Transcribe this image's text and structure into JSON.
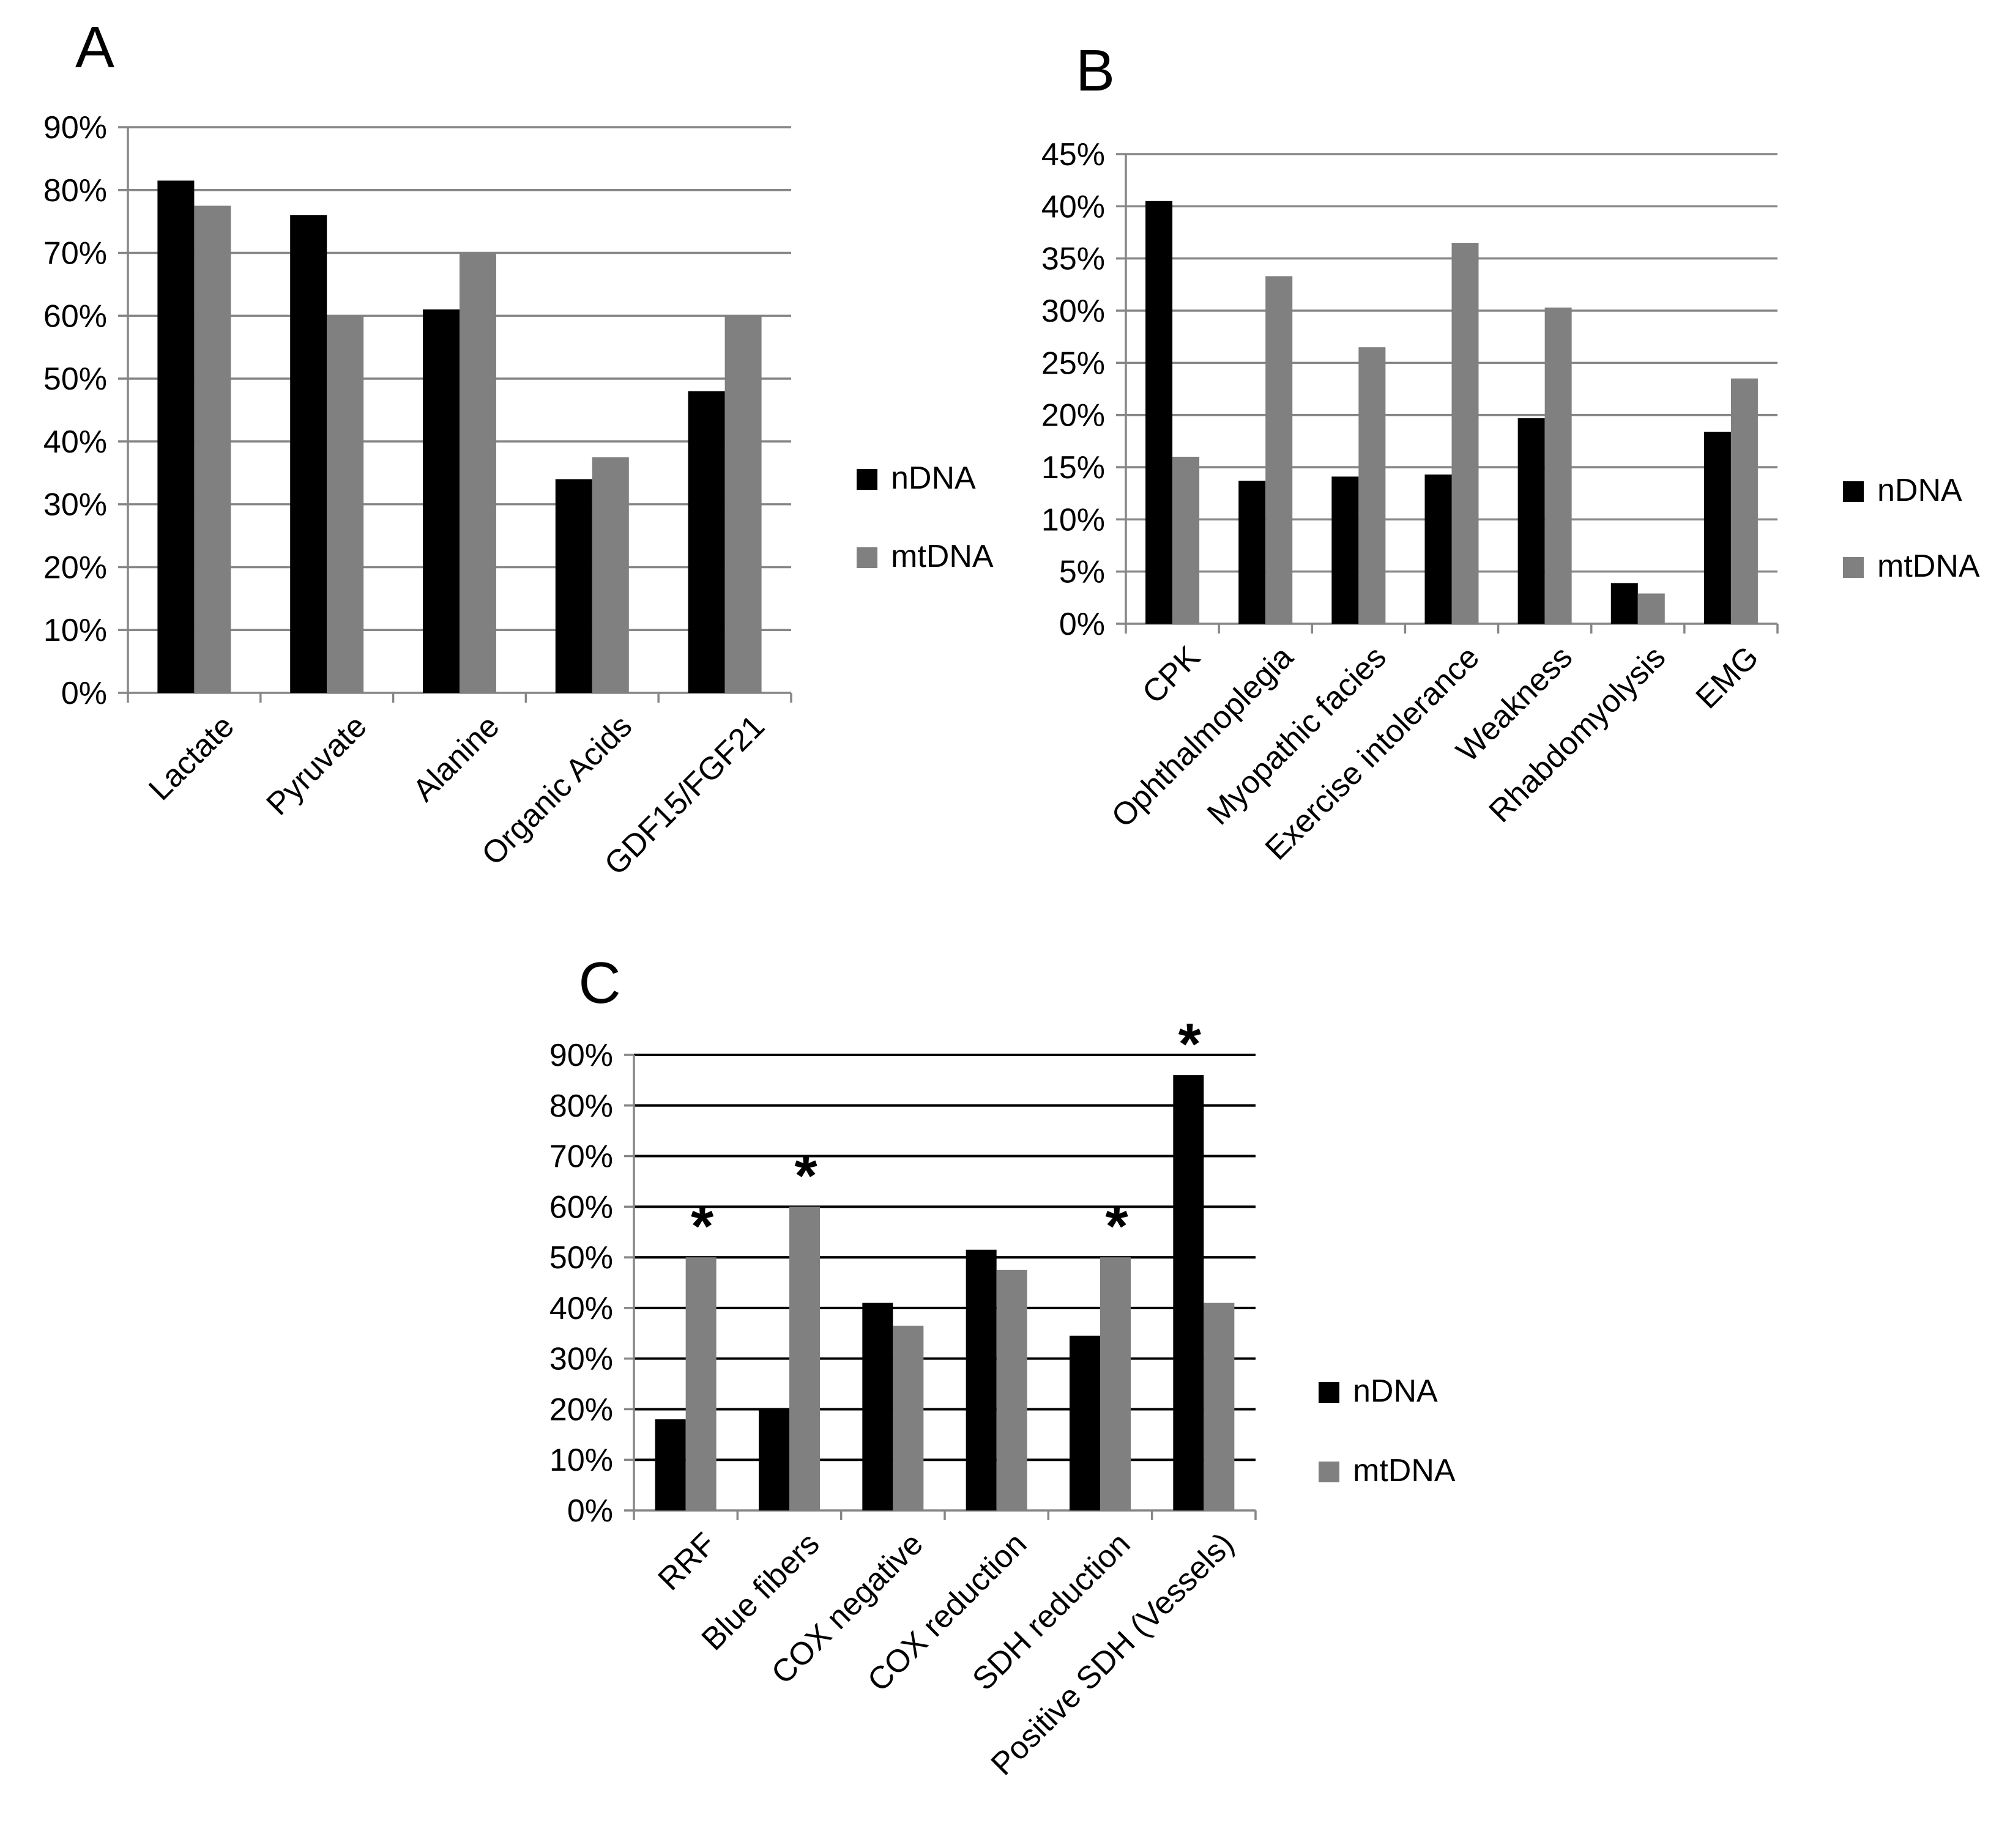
{
  "colors": {
    "nDNA": "#000000",
    "mtDNA": "#808080",
    "grid": "#868686",
    "axis": "#868686"
  },
  "legend": {
    "series": [
      "nDNA",
      "mtDNA"
    ]
  },
  "chart_data": [
    {
      "panel": "A",
      "type": "bar",
      "categories": [
        "Lactate",
        "Pyruvate",
        "Alanine",
        "Organic Acids",
        "GDF15/FGF21"
      ],
      "series": [
        {
          "name": "nDNA",
          "values": [
            81.5,
            76,
            61,
            34,
            48
          ]
        },
        {
          "name": "mtDNA",
          "values": [
            77.5,
            60,
            70,
            37.5,
            60
          ]
        }
      ],
      "ylim": [
        0,
        90
      ],
      "yticks": [
        "0%",
        "10%",
        "20%",
        "30%",
        "40%",
        "50%",
        "60%",
        "70%",
        "80%",
        "90%"
      ],
      "legend_position": "right",
      "title": "",
      "xlabel": "",
      "ylabel": ""
    },
    {
      "panel": "B",
      "type": "bar",
      "categories": [
        "CPK",
        "Ophthalmoplegia",
        "Myopathic facies",
        "Exercise intolerance",
        "Weakness",
        "Rhabdomyolysis",
        "EMG"
      ],
      "series": [
        {
          "name": "nDNA",
          "values": [
            40.5,
            13.7,
            14.1,
            14.3,
            19.7,
            3.9,
            18.4
          ]
        },
        {
          "name": "mtDNA",
          "values": [
            16,
            33.3,
            26.5,
            36.5,
            30.3,
            2.9,
            23.5
          ]
        }
      ],
      "ylim": [
        0,
        45
      ],
      "yticks": [
        "0%",
        "5%",
        "10%",
        "15%",
        "20%",
        "25%",
        "30%",
        "35%",
        "40%",
        "45%"
      ],
      "legend_position": "right",
      "title": "",
      "xlabel": "",
      "ylabel": ""
    },
    {
      "panel": "C",
      "type": "bar",
      "categories": [
        "RRF",
        "Blue fibers",
        "COX negative",
        "COX reduction",
        "SDH reduction",
        "Positive SDH (Vessels)"
      ],
      "series": [
        {
          "name": "nDNA",
          "values": [
            18,
            20,
            41,
            51.5,
            34.5,
            86
          ]
        },
        {
          "name": "mtDNA",
          "values": [
            50,
            60,
            36.5,
            47.5,
            50,
            41
          ]
        }
      ],
      "significance": [
        "*",
        "*",
        "",
        "",
        "*",
        "*"
      ],
      "ylim": [
        0,
        90
      ],
      "yticks": [
        "0%",
        "10%",
        "20%",
        "30%",
        "40%",
        "50%",
        "60%",
        "70%",
        "80%",
        "90%"
      ],
      "legend_position": "right",
      "title": "",
      "xlabel": "",
      "ylabel": ""
    }
  ]
}
